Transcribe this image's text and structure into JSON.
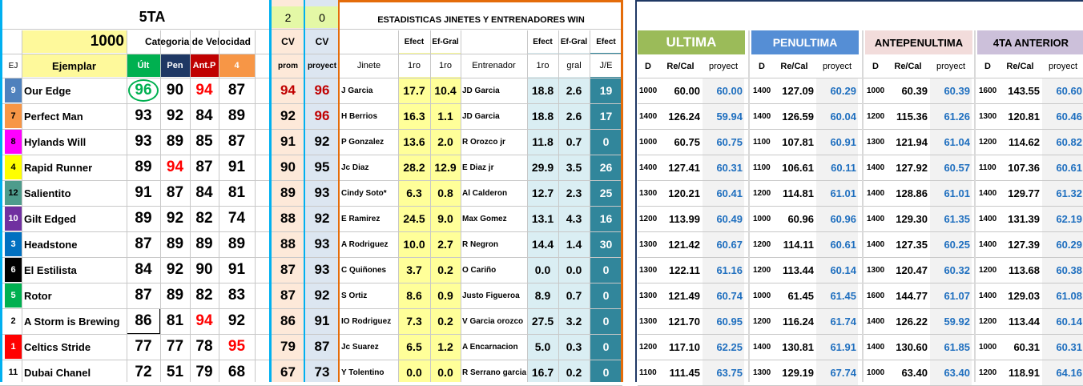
{
  "header": {
    "race_label": "5TA",
    "cv_prom_count": "2",
    "cv_proy_count": "0",
    "stats_title": "ESTADISTICAS JINETES Y ENTRENADORES WIN",
    "distance": "1000",
    "category_label": "Categoria de Velocidad"
  },
  "columns": {
    "ej": "EJ",
    "ejemplar": "Ejemplar",
    "ult": "Últ",
    "pen": "Pen",
    "antp": "Ant.P",
    "cuarto": "4",
    "cv1_top": "CV",
    "cv1_bottom": "prom",
    "cv2_top": "CV",
    "cv2_bottom": "proyect",
    "efect_top": "Efect",
    "efgral_top": "Ef-Gral",
    "jinete": "Jinete",
    "j_1ro": "1ro",
    "j_1ro_b": "1ro",
    "entrenador": "Entrenador",
    "e_efect_top": "Efect",
    "e_efgral_top": "Ef-Gral",
    "je_top": "Efect",
    "e_1ro": "1ro",
    "e_gral": "gral",
    "je": "J/E"
  },
  "history_headers": [
    "ULTIMA",
    "PENULTIMA",
    "ANTEPENULTIMA",
    "4TA ANTERIOR"
  ],
  "history_sub": {
    "d": "D",
    "recal": "Re/Cal",
    "proy": "proyect"
  },
  "colors": {
    "yellow": "#fef99b",
    "green": "#00b050",
    "navy": "#1f3864",
    "dark_red": "#c00000",
    "orange_col": "#f79646",
    "peach": "#fde9d9",
    "light_blue": "#dce6f1",
    "cyan_border": "#00b0f0",
    "orange_border": "#e46c0a",
    "teal": "#31869b",
    "mint": "#daeef3",
    "light_yellow": "#ffff99",
    "hist_green": "#9bbb59",
    "hist_blue": "#558ed5",
    "hist_pink": "#f2dcdb",
    "hist_lavender": "#ccc0da",
    "proy_blue": "#1f6fbf",
    "red_text": "#ff0000"
  },
  "rows": [
    {
      "ej": "9",
      "ej_color": "#4f81bd",
      "ej_text": "#ffffff",
      "name": "Our Edge",
      "ult": "96",
      "ult_circle": true,
      "ult_color": "green",
      "pen": "90",
      "pen_red": false,
      "antp": "94",
      "antp_red": true,
      "cuarto": "87",
      "cuarto_red": false,
      "cv_prom": "94",
      "cv_prom_red": true,
      "cv_proy": "96",
      "cv_proy_red": true,
      "jinete": "J Garcia",
      "j_efect": "17.7",
      "j_efgral": "10.4",
      "entrenador": "JD Garcia",
      "e_efect": "18.8",
      "e_gral": "2.6",
      "je": "19",
      "hist": [
        [
          "1000",
          "60.00",
          "60.00"
        ],
        [
          "1400",
          "127.09",
          "60.29"
        ],
        [
          "1000",
          "60.39",
          "60.39"
        ],
        [
          "1600",
          "143.55",
          "60.60"
        ]
      ]
    },
    {
      "ej": "7",
      "ej_color": "#f79646",
      "ej_text": "#000000",
      "name": "Perfect Man",
      "ult": "93",
      "ult_circle": false,
      "pen": "92",
      "pen_red": false,
      "antp": "84",
      "antp_red": false,
      "cuarto": "89",
      "cuarto_red": false,
      "cv_prom": "92",
      "cv_prom_red": false,
      "cv_proy": "96",
      "cv_proy_red": true,
      "jinete": "H Berrios",
      "j_efect": "16.3",
      "j_efgral": "1.1",
      "entrenador": "JD Garcia",
      "e_efect": "18.8",
      "e_gral": "2.6",
      "je": "17",
      "hist": [
        [
          "1400",
          "126.24",
          "59.94"
        ],
        [
          "1400",
          "126.59",
          "60.04"
        ],
        [
          "1200",
          "115.36",
          "61.26"
        ],
        [
          "1300",
          "120.81",
          "60.46"
        ]
      ]
    },
    {
      "ej": "8",
      "ej_color": "#ff00ff",
      "ej_text": "#000000",
      "name": "Hylands Will",
      "ult": "93",
      "ult_circle": false,
      "pen": "89",
      "pen_red": false,
      "antp": "85",
      "antp_red": false,
      "cuarto": "87",
      "cuarto_red": false,
      "cv_prom": "91",
      "cv_prom_red": false,
      "cv_proy": "92",
      "cv_proy_red": false,
      "jinete": "P Gonzalez",
      "j_efect": "13.6",
      "j_efgral": "2.0",
      "entrenador": "R Orozco jr",
      "e_efect": "11.8",
      "e_gral": "0.7",
      "je": "0",
      "hist": [
        [
          "1000",
          "60.75",
          "60.75"
        ],
        [
          "1100",
          "107.81",
          "60.91"
        ],
        [
          "1300",
          "121.94",
          "61.04"
        ],
        [
          "1200",
          "114.62",
          "60.82"
        ]
      ]
    },
    {
      "ej": "4",
      "ej_color": "#ffff00",
      "ej_text": "#000000",
      "name": "Rapid Runner",
      "ult": "89",
      "ult_circle": false,
      "pen": "94",
      "pen_red": true,
      "antp": "87",
      "antp_red": false,
      "cuarto": "91",
      "cuarto_red": false,
      "cv_prom": "90",
      "cv_prom_red": false,
      "cv_proy": "95",
      "cv_proy_red": false,
      "jinete": "Jc Diaz",
      "j_efect": "28.2",
      "j_efgral": "12.9",
      "entrenador": "E Diaz jr",
      "e_efect": "29.9",
      "e_gral": "3.5",
      "je": "26",
      "hist": [
        [
          "1400",
          "127.41",
          "60.31"
        ],
        [
          "1100",
          "106.61",
          "60.11"
        ],
        [
          "1400",
          "127.92",
          "60.57"
        ],
        [
          "1100",
          "107.36",
          "60.61"
        ]
      ]
    },
    {
      "ej": "12",
      "ej_color": "#4e9c8c",
      "ej_text": "#000000",
      "name": "Salientito",
      "ult": "91",
      "ult_circle": false,
      "pen": "87",
      "pen_red": false,
      "antp": "84",
      "antp_red": false,
      "cuarto": "81",
      "cuarto_red": false,
      "cv_prom": "89",
      "cv_prom_red": false,
      "cv_proy": "93",
      "cv_proy_red": false,
      "jinete": "Cindy Soto*",
      "j_efect": "6.3",
      "j_efgral": "0.8",
      "entrenador": "Al Calderon",
      "e_efect": "12.7",
      "e_gral": "2.3",
      "je": "25",
      "hist": [
        [
          "1300",
          "120.21",
          "60.41"
        ],
        [
          "1200",
          "114.81",
          "61.01"
        ],
        [
          "1400",
          "128.86",
          "61.01"
        ],
        [
          "1400",
          "129.77",
          "61.32"
        ]
      ]
    },
    {
      "ej": "10",
      "ej_color": "#7030a0",
      "ej_text": "#ffffff",
      "name": "Gilt Edged",
      "ult": "89",
      "ult_circle": false,
      "pen": "92",
      "pen_red": false,
      "antp": "82",
      "antp_red": false,
      "cuarto": "74",
      "cuarto_red": false,
      "cv_prom": "88",
      "cv_prom_red": false,
      "cv_proy": "92",
      "cv_proy_red": false,
      "jinete": "E Ramirez",
      "j_efect": "24.5",
      "j_efgral": "9.0",
      "entrenador": "Max Gomez",
      "e_efect": "13.1",
      "e_gral": "4.3",
      "je": "16",
      "hist": [
        [
          "1200",
          "113.99",
          "60.49"
        ],
        [
          "1000",
          "60.96",
          "60.96"
        ],
        [
          "1400",
          "129.30",
          "61.35"
        ],
        [
          "1400",
          "131.39",
          "62.19"
        ]
      ]
    },
    {
      "ej": "3",
      "ej_color": "#0070c0",
      "ej_text": "#ffffff",
      "name": "Headstone",
      "ult": "87",
      "ult_circle": false,
      "pen": "89",
      "pen_red": false,
      "antp": "89",
      "antp_red": false,
      "cuarto": "89",
      "cuarto_red": false,
      "cv_prom": "88",
      "cv_prom_red": false,
      "cv_proy": "93",
      "cv_proy_red": false,
      "jinete": "A Rodriguez",
      "j_efect": "10.0",
      "j_efgral": "2.7",
      "entrenador": "R Negron",
      "e_efect": "14.4",
      "e_gral": "1.4",
      "je": "30",
      "hist": [
        [
          "1300",
          "121.42",
          "60.67"
        ],
        [
          "1200",
          "114.11",
          "60.61"
        ],
        [
          "1400",
          "127.35",
          "60.25"
        ],
        [
          "1400",
          "127.39",
          "60.29"
        ]
      ]
    },
    {
      "ej": "6",
      "ej_color": "#000000",
      "ej_text": "#ffffff",
      "name": "El Estilista",
      "ult": "84",
      "ult_circle": false,
      "pen": "92",
      "pen_red": false,
      "antp": "90",
      "antp_red": false,
      "cuarto": "91",
      "cuarto_red": false,
      "cv_prom": "87",
      "cv_prom_red": false,
      "cv_proy": "93",
      "cv_proy_red": false,
      "jinete": "C Quiñones",
      "j_efect": "3.7",
      "j_efgral": "0.2",
      "entrenador": "O Cariño",
      "e_efect": "0.0",
      "e_gral": "0.0",
      "je": "0",
      "hist": [
        [
          "1300",
          "122.11",
          "61.16"
        ],
        [
          "1200",
          "113.44",
          "60.14"
        ],
        [
          "1300",
          "120.47",
          "60.32"
        ],
        [
          "1200",
          "113.68",
          "60.38"
        ]
      ]
    },
    {
      "ej": "5",
      "ej_color": "#00b050",
      "ej_text": "#ffffff",
      "name": "Rotor",
      "ult": "87",
      "ult_circle": false,
      "pen": "89",
      "pen_red": false,
      "antp": "82",
      "antp_red": false,
      "cuarto": "83",
      "cuarto_red": false,
      "cv_prom": "87",
      "cv_prom_red": false,
      "cv_proy": "92",
      "cv_proy_red": false,
      "jinete": "S Ortiz",
      "j_efect": "8.6",
      "j_efgral": "0.9",
      "entrenador": "Justo Figueroa",
      "e_efect": "8.9",
      "e_gral": "0.7",
      "je": "0",
      "hist": [
        [
          "1300",
          "121.49",
          "60.74"
        ],
        [
          "1000",
          "61.45",
          "61.45"
        ],
        [
          "1600",
          "144.77",
          "61.07"
        ],
        [
          "1400",
          "129.03",
          "61.08"
        ]
      ]
    },
    {
      "ej": "2",
      "ej_color": "#ffffff",
      "ej_text": "#000000",
      "name": "A Storm is Brewing",
      "ult": "86",
      "ult_circle": false,
      "ult_selected": true,
      "pen": "81",
      "pen_red": false,
      "antp": "94",
      "antp_red": true,
      "cuarto": "92",
      "cuarto_red": false,
      "cv_prom": "86",
      "cv_prom_red": false,
      "cv_proy": "91",
      "cv_proy_red": false,
      "jinete": "IO Rodriguez",
      "j_efect": "7.3",
      "j_efgral": "0.2",
      "entrenador": "V Garcia orozco",
      "e_efect": "27.5",
      "e_gral": "3.2",
      "je": "0",
      "hist": [
        [
          "1300",
          "121.70",
          "60.95"
        ],
        [
          "1200",
          "116.24",
          "61.74"
        ],
        [
          "1400",
          "126.22",
          "59.92"
        ],
        [
          "1200",
          "113.44",
          "60.14"
        ]
      ]
    },
    {
      "ej": "1",
      "ej_color": "#ff0000",
      "ej_text": "#ffffff",
      "name": "Celtics Stride",
      "ult": "77",
      "ult_circle": false,
      "pen": "77",
      "pen_red": false,
      "antp": "78",
      "antp_red": false,
      "cuarto": "95",
      "cuarto_red": true,
      "cv_prom": "79",
      "cv_prom_red": false,
      "cv_proy": "87",
      "cv_proy_red": false,
      "jinete": "Jc Suarez",
      "j_efect": "6.5",
      "j_efgral": "1.2",
      "entrenador": "A Encarnacion",
      "e_efect": "5.0",
      "e_gral": "0.3",
      "je": "0",
      "hist": [
        [
          "1200",
          "117.10",
          "62.25"
        ],
        [
          "1400",
          "130.81",
          "61.91"
        ],
        [
          "1400",
          "130.60",
          "61.85"
        ],
        [
          "1000",
          "60.31",
          "60.31"
        ]
      ]
    },
    {
      "ej": "11",
      "ej_color": "#ffffff",
      "ej_text": "#000000",
      "name": "Dubai Chanel",
      "ult": "72",
      "ult_circle": false,
      "pen": "51",
      "pen_red": false,
      "antp": "79",
      "antp_red": false,
      "cuarto": "68",
      "cuarto_red": false,
      "cv_prom": "67",
      "cv_prom_red": false,
      "cv_proy": "73",
      "cv_proy_red": false,
      "jinete": "Y Tolentino",
      "j_efect": "0.0",
      "j_efgral": "0.0",
      "entrenador": "R Serrano garcia",
      "e_efect": "16.7",
      "e_gral": "0.2",
      "je": "0",
      "hist": [
        [
          "1100",
          "111.45",
          "63.75"
        ],
        [
          "1300",
          "129.19",
          "67.74"
        ],
        [
          "1000",
          "63.40",
          "63.40"
        ],
        [
          "1200",
          "118.91",
          "64.16"
        ]
      ]
    }
  ]
}
